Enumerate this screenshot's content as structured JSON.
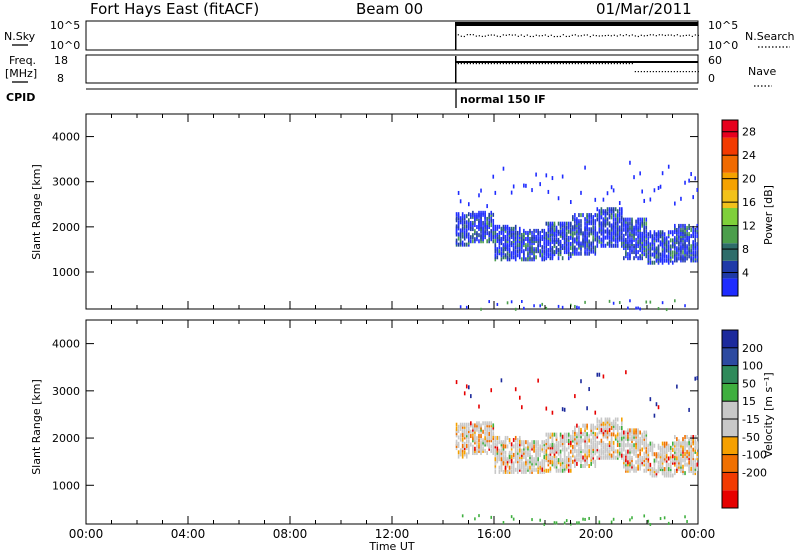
{
  "header": {
    "station": "Fort Hays East (fitACF)",
    "beam": "Beam 00",
    "date": "01/Mar/2011"
  },
  "status_panels": {
    "nsky_label": "N.Sky",
    "nsearch_label": "N.Search",
    "noise_ticks": [
      "10^5",
      "10^0"
    ],
    "freq_label_1": "Freq.",
    "freq_label_2": "[MHz]",
    "freq_ticks": [
      "18",
      "8"
    ],
    "nave_label": "Nave",
    "nave_ticks": [
      "60",
      "0"
    ],
    "cpid_label": "CPID",
    "cpid_value": "normal 150 IF"
  },
  "colors": {
    "power_scale": [
      "#1f2cff",
      "#1f3aa8",
      "#2e6c6a",
      "#4b9e4b",
      "#7fd03a",
      "#f2c21b",
      "#f5a200",
      "#f06a00",
      "#f23a00",
      "#e6001e"
    ],
    "velocity_scale": [
      "#e60000",
      "#f23a00",
      "#f07000",
      "#f5a000",
      "#c8c8c8",
      "#c8c8c8",
      "#3faf3f",
      "#2f8a5a",
      "#2d4aa0",
      "#1c2a9c"
    ]
  },
  "chart_data": [
    {
      "type": "heatmap",
      "name": "power",
      "ylabel": "Slant Range [km]",
      "y_ticks": [
        1000,
        2000,
        3000,
        4000
      ],
      "ylim": [
        180,
        4500
      ],
      "x_ticks": [
        "00:00",
        "04:00",
        "08:00",
        "12:00",
        "16:00",
        "20:00",
        "00:00"
      ],
      "xlim_hours": [
        0,
        24
      ],
      "colorbar_label": "Power [dB]",
      "colorbar_ticks": [
        4,
        8,
        12,
        16,
        20,
        24,
        28
      ],
      "colorbar_range": [
        0,
        30
      ],
      "data_start_hour": 14.5,
      "scatter_band": [
        {
          "hour": 14.5,
          "center_km": 2000,
          "width_km": 700
        },
        {
          "hour": 15.5,
          "center_km": 2050,
          "width_km": 650
        },
        {
          "hour": 16.5,
          "center_km": 1700,
          "width_km": 750
        },
        {
          "hour": 17.5,
          "center_km": 1650,
          "width_km": 650
        },
        {
          "hour": 18.5,
          "center_km": 1750,
          "width_km": 800
        },
        {
          "hour": 19.5,
          "center_km": 1900,
          "width_km": 900
        },
        {
          "hour": 20.5,
          "center_km": 2050,
          "width_km": 850
        },
        {
          "hour": 21.5,
          "center_km": 1800,
          "width_km": 900
        },
        {
          "hour": 22.5,
          "center_km": 1600,
          "width_km": 700
        },
        {
          "hour": 23.5,
          "center_km": 1700,
          "width_km": 800
        }
      ]
    },
    {
      "type": "heatmap",
      "name": "velocity",
      "ylabel": "Slant Range [km]",
      "y_ticks": [
        1000,
        2000,
        3000,
        4000
      ],
      "ylim": [
        180,
        4500
      ],
      "x_ticks": [
        "00:00",
        "04:00",
        "08:00",
        "12:00",
        "16:00",
        "20:00",
        "00:00"
      ],
      "xlabel": "Time UT",
      "xlim_hours": [
        0,
        24
      ],
      "colorbar_label": "Velocity [m s⁻¹]",
      "colorbar_ticks": [
        "200",
        "100",
        "50",
        "15",
        "-15",
        "-50",
        "-100",
        "-200"
      ],
      "colorbar_range": [
        -250,
        250
      ],
      "data_start_hour": 14.5
    }
  ]
}
